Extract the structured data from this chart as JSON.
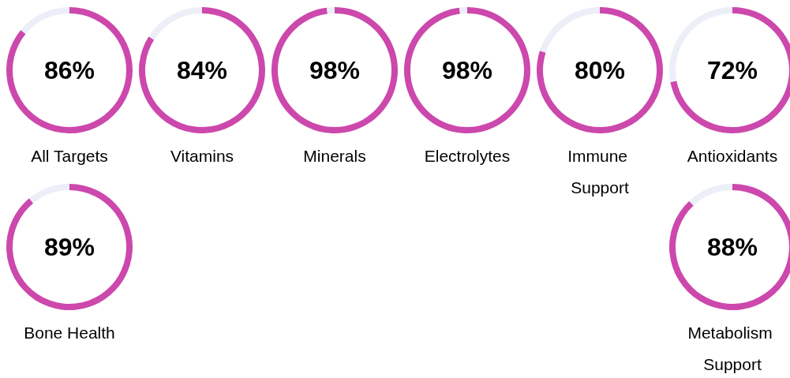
{
  "chart_data": [
    {
      "type": "donut",
      "title": "All Targets",
      "categories": [
        null,
        null
      ],
      "values": [
        86,
        14
      ],
      "colors": [
        "#cc48ac",
        "#eceef8"
      ],
      "value_labels": [
        "86%",
        null
      ]
    },
    {
      "type": "donut",
      "title": "Vitamins",
      "categories": [
        null,
        null
      ],
      "values": [
        84,
        16
      ],
      "colors": [
        "#cc48ac",
        "#eceef8"
      ],
      "value_labels": [
        "84%",
        null
      ]
    },
    {
      "type": "donut",
      "title": "Minerals",
      "categories": [
        null,
        null
      ],
      "values": [
        98,
        2
      ],
      "colors": [
        "#cc48ac",
        "#eceef8"
      ],
      "value_labels": [
        "98%",
        null
      ]
    },
    {
      "type": "donut",
      "title": "Electrolytes",
      "categories": [
        null,
        null
      ],
      "values": [
        98,
        2
      ],
      "colors": [
        "#cc48ac",
        "#eceef8"
      ],
      "value_labels": [
        "98%",
        null
      ]
    },
    {
      "type": "donut",
      "title": "Immune Support",
      "categories": [
        null,
        null
      ],
      "values": [
        80,
        20
      ],
      "colors": [
        "#cc48ac",
        "#eceef8"
      ],
      "value_labels": [
        "80%",
        null
      ]
    },
    {
      "type": "donut",
      "title": "Antioxidants",
      "categories": [
        null,
        null
      ],
      "values": [
        72,
        28
      ],
      "colors": [
        "#cc48ac",
        "#eceef8"
      ],
      "value_labels": [
        "72%",
        null
      ]
    },
    {
      "type": "donut",
      "title": "Bone Health",
      "categories": [
        null,
        null
      ],
      "values": [
        89,
        11
      ],
      "colors": [
        "#cc48ac",
        "#eceef8"
      ],
      "value_labels": [
        "89%",
        null
      ]
    },
    {
      "type": "donut",
      "title": "Metabolism Support",
      "categories": [
        null,
        null
      ],
      "values": [
        88,
        12
      ],
      "colors": [
        "#cc48ac",
        "#eceef8"
      ],
      "value_labels": [
        "88%",
        null
      ]
    }
  ]
}
